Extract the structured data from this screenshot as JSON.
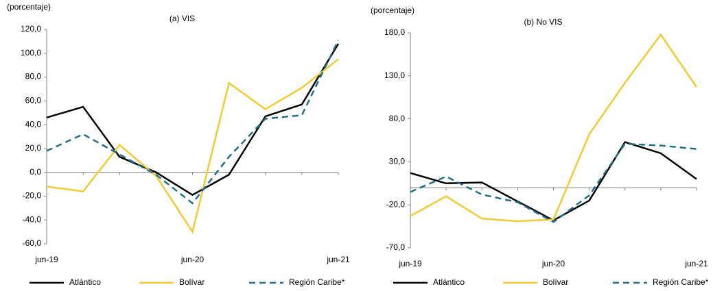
{
  "chart_data": [
    {
      "type": "line",
      "title": "(a) VIS",
      "ylabel": "(porcentaje)",
      "categories": [
        "jun-19",
        null,
        null,
        null,
        "jun-20",
        null,
        null,
        null,
        "jun-21"
      ],
      "ylim": [
        -60,
        120
      ],
      "yticks": [
        {
          "value": -60,
          "label": "-60,0"
        },
        {
          "value": -40,
          "label": "-40,0"
        },
        {
          "value": -20,
          "label": "-20,0"
        },
        {
          "value": 0,
          "label": "0,0"
        },
        {
          "value": 20,
          "label": "20,0"
        },
        {
          "value": 40,
          "label": "40,0"
        },
        {
          "value": 60,
          "label": "60,0"
        },
        {
          "value": 80,
          "label": "80,0"
        },
        {
          "value": 100,
          "label": "100,0"
        },
        {
          "value": 120,
          "label": "120,0"
        }
      ],
      "series": [
        {
          "name": "Atlántico",
          "color": "#000000",
          "dash": false,
          "values": [
            46,
            55,
            13,
            0,
            -19,
            -2,
            47,
            57,
            108
          ]
        },
        {
          "name": "Bolívar",
          "color": "#f5c933",
          "dash": false,
          "values": [
            -12,
            -16,
            23,
            -3,
            -50,
            75,
            53,
            71,
            95
          ]
        },
        {
          "name": "Región Caribe*",
          "color": "#1f6e8c",
          "dash": true,
          "values": [
            18,
            32,
            15,
            -2,
            -26,
            13,
            45,
            48,
            111
          ]
        }
      ]
    },
    {
      "type": "line",
      "title": "(b) No VIS",
      "ylabel": "(porcentaje)",
      "categories": [
        "jun-19",
        null,
        null,
        null,
        "jun-20",
        null,
        null,
        null,
        "jun-21"
      ],
      "ylim": [
        -70,
        180
      ],
      "yticks": [
        {
          "value": -70,
          "label": "-70,0"
        },
        {
          "value": -20,
          "label": "-20,0"
        },
        {
          "value": 30,
          "label": "30,0"
        },
        {
          "value": 80,
          "label": "80,0"
        },
        {
          "value": 130,
          "label": "130,0"
        },
        {
          "value": 180,
          "label": "180,0"
        }
      ],
      "series": [
        {
          "name": "Atlántico",
          "color": "#000000",
          "dash": false,
          "values": [
            17,
            5,
            6,
            -16,
            -38,
            -15,
            53,
            40,
            10
          ]
        },
        {
          "name": "Bolívar",
          "color": "#f5c933",
          "dash": false,
          "values": [
            -33,
            -10,
            -36,
            -39,
            -37,
            62,
            122,
            178,
            117
          ]
        },
        {
          "name": "Región Caribe*",
          "color": "#1f6e8c",
          "dash": true,
          "values": [
            -5,
            13,
            -8,
            -17,
            -40,
            -9,
            51,
            49,
            45
          ]
        }
      ]
    }
  ]
}
